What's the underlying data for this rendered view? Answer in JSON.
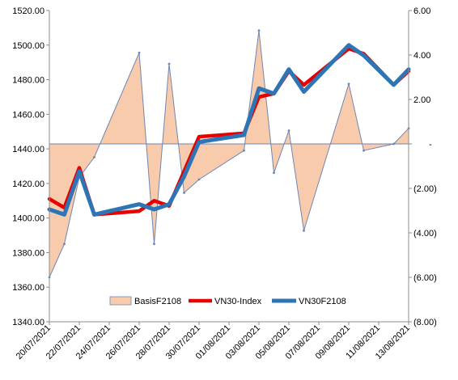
{
  "chart_data": {
    "type": "line",
    "x": [
      "20/07/2021",
      "21/07/2021",
      "22/07/2021",
      "23/07/2021",
      "26/07/2021",
      "27/07/2021",
      "28/07/2021",
      "29/07/2021",
      "30/07/2021",
      "02/08/2021",
      "03/08/2021",
      "04/08/2021",
      "05/08/2021",
      "06/08/2021",
      "09/08/2021",
      "10/08/2021",
      "12/08/2021",
      "13/08/2021"
    ],
    "x_tick_labels": [
      "20/07/2021",
      "22/07/2021",
      "24/07/2021",
      "26/07/2021",
      "28/07/2021",
      "30/07/2021",
      "01/08/2021",
      "03/08/2021",
      "05/08/2021",
      "07/08/2021",
      "09/08/2021",
      "11/08/2021",
      "13/08/2021"
    ],
    "y_left": {
      "ylim": [
        1340,
        1520
      ],
      "ticks": [
        "1340.00",
        "1360.00",
        "1380.00",
        "1400.00",
        "1420.00",
        "1440.00",
        "1460.00",
        "1480.00",
        "1500.00",
        "1520.00"
      ]
    },
    "y_right": {
      "ylim": [
        -8,
        6
      ],
      "ticks": [
        "(8.00)",
        "(6.00)",
        "(4.00)",
        "(2.00)",
        "-",
        "2.00",
        "4.00",
        "6.00"
      ]
    },
    "series": [
      {
        "name": "BasisF2108",
        "axis": "right",
        "kind": "area",
        "color": "#f8cbad",
        "edge_color": "#6f86b3",
        "x": [
          "20/07/2021",
          "21/07/2021",
          "22/07/2021",
          "23/07/2021",
          "26/07/2021",
          "27/07/2021",
          "28/07/2021",
          "29/07/2021",
          "30/07/2021",
          "02/08/2021",
          "03/08/2021",
          "04/08/2021",
          "05/08/2021",
          "06/08/2021",
          "09/08/2021",
          "10/08/2021",
          "12/08/2021",
          "13/08/2021"
        ],
        "values": [
          -6.0,
          -4.5,
          -1.5,
          -0.6,
          4.1,
          -4.5,
          3.6,
          -2.2,
          -1.6,
          -0.3,
          5.1,
          -1.3,
          0.6,
          -3.9,
          2.7,
          -0.3,
          0.0,
          0.7
        ]
      },
      {
        "name": "VN30-Index",
        "axis": "left",
        "kind": "line",
        "color": "#e60000",
        "x": [
          "20/07/2021",
          "21/07/2021",
          "22/07/2021",
          "23/07/2021",
          "26/07/2021",
          "27/07/2021",
          "28/07/2021",
          "30/07/2021",
          "02/08/2021",
          "03/08/2021",
          "04/08/2021",
          "05/08/2021",
          "06/08/2021",
          "09/08/2021",
          "10/08/2021",
          "12/08/2021",
          "13/08/2021"
        ],
        "values": [
          1411,
          1406,
          1429,
          1402,
          1404,
          1410,
          1407,
          1447,
          1449,
          1470,
          1472,
          1485,
          1477,
          1498,
          1495,
          1477,
          1485
        ]
      },
      {
        "name": "VN30F2108",
        "axis": "left",
        "kind": "line",
        "color": "#2e75b6",
        "x": [
          "20/07/2021",
          "21/07/2021",
          "22/07/2021",
          "23/07/2021",
          "26/07/2021",
          "27/07/2021",
          "28/07/2021",
          "29/07/2021",
          "30/07/2021",
          "02/08/2021",
          "03/08/2021",
          "04/08/2021",
          "05/08/2021",
          "06/08/2021",
          "09/08/2021",
          "10/08/2021",
          "12/08/2021",
          "13/08/2021"
        ],
        "values": [
          1405,
          1402,
          1427,
          1402,
          1408,
          1405,
          1408,
          1424,
          1444,
          1448,
          1475,
          1472,
          1486,
          1473,
          1500,
          1494,
          1477,
          1486
        ]
      }
    ],
    "legend": {
      "position": "bottom-inside"
    }
  }
}
